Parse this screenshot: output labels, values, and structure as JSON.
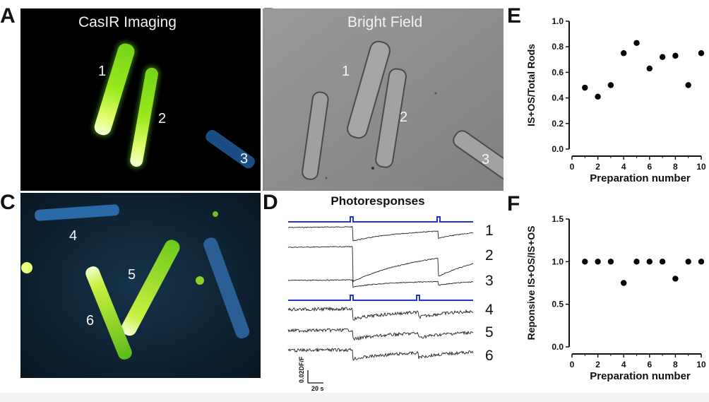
{
  "panels": {
    "A": {
      "letter": "A",
      "title": "CasIR Imaging",
      "cells": [
        "1",
        "2",
        "3"
      ]
    },
    "B": {
      "letter": "B",
      "title": "Bright Field",
      "cells": [
        "1",
        "2",
        "3"
      ]
    },
    "C": {
      "letter": "C",
      "cells": [
        "4",
        "5",
        "6"
      ]
    },
    "D": {
      "letter": "D",
      "title": "Photoresponses",
      "trace_labels": [
        "1",
        "2",
        "3",
        "4",
        "5",
        "6"
      ],
      "scale_y_label": "0.02DF/F",
      "scale_x_label": "20 s"
    },
    "E": {
      "letter": "E"
    },
    "F": {
      "letter": "F"
    }
  },
  "colors": {
    "stimulus": "#2233cc",
    "fluor_cell": "#b8f020",
    "fluor_tip": "#f4ffd8",
    "dim_cell": "#1f5a9a",
    "dot": "#000000"
  },
  "chart_data": [
    {
      "type": "scatter",
      "panel": "E",
      "xlabel": "Preparation number",
      "ylabel": "IS+OS/Total Rods",
      "xlim": [
        0,
        10
      ],
      "ylim": [
        0,
        1.0
      ],
      "xticks": [
        "0",
        "2",
        "4",
        "6",
        "8",
        "10"
      ],
      "yticks": [
        "0.0",
        "0.2",
        "0.4",
        "0.6",
        "0.8",
        "1.0"
      ],
      "x": [
        1,
        2,
        3,
        4,
        5,
        6,
        7,
        8,
        9,
        10
      ],
      "y": [
        0.48,
        0.41,
        0.5,
        0.75,
        0.83,
        0.63,
        0.72,
        0.73,
        0.5,
        0.75
      ]
    },
    {
      "type": "scatter",
      "panel": "F",
      "xlabel": "Preparation number",
      "ylabel": "Reponsive IS+OS/IS+OS",
      "xlim": [
        0,
        10
      ],
      "ylim": [
        0,
        1.5
      ],
      "xticks": [
        "0",
        "2",
        "4",
        "6",
        "8",
        "10"
      ],
      "yticks": [
        "0.0",
        "0.5",
        "1.0",
        "1.5"
      ],
      "x": [
        1,
        2,
        3,
        4,
        5,
        6,
        7,
        8,
        9,
        10
      ],
      "y": [
        1.0,
        1.0,
        1.0,
        0.75,
        1.0,
        1.0,
        1.0,
        0.8,
        1.0,
        1.0
      ]
    }
  ]
}
